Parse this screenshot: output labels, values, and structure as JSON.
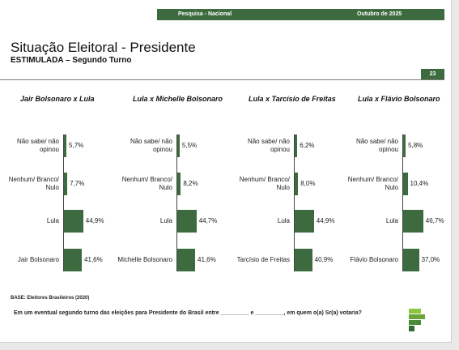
{
  "header": {
    "survey": "Pesquisa - Nacional",
    "date": "Outubro de 2025",
    "page_number": "23",
    "colors": {
      "brand": "#3d6b3f"
    }
  },
  "title": "Situação Eleitoral - Presidente",
  "subtitle": "ESTIMULADA – Segundo Turno",
  "footer": {
    "base": "BASE: Eleitores Brasileiros (2020)",
    "question": "Em um eventual segundo turno das eleições para Presidente do Brasil entre _________ e _________, em quem o(a) Sr(a) votaria?"
  },
  "chart_data": [
    {
      "type": "bar",
      "orientation": "horizontal",
      "title": "Jair Bolsonaro x Lula",
      "categories": [
        "Não sabe/ não opinou",
        "Nenhum/ Branco/ Nulo",
        "Lula",
        "Jair Bolsonaro"
      ],
      "values": [
        5.7,
        7.7,
        44.9,
        41.6
      ],
      "labels": [
        "5,7%",
        "7,7%",
        "44,9%",
        "41,6%"
      ]
    },
    {
      "type": "bar",
      "orientation": "horizontal",
      "title": "Lula x Michelle Bolsonaro",
      "categories": [
        "Não sabe/ não opinou",
        "Nenhum/ Branco/ Nulo",
        "Lula",
        "Michelle Bolsonaro"
      ],
      "values": [
        5.5,
        8.2,
        44.7,
        41.6
      ],
      "labels": [
        "5,5%",
        "8,2%",
        "44,7%",
        "41,6%"
      ]
    },
    {
      "type": "bar",
      "orientation": "horizontal",
      "title": "Lula x Tarcísio de Freitas",
      "categories": [
        "Não sabe/ não opinou",
        "Nenhum/ Branco/ Nulo",
        "Lula",
        "Tarcísio de Freitas"
      ],
      "values": [
        6.2,
        8.0,
        44.9,
        40.9
      ],
      "labels": [
        "6,2%",
        "8,0%",
        "44,9%",
        "40,9%"
      ]
    },
    {
      "type": "bar",
      "orientation": "horizontal",
      "title": "Lula x Flávio Bolsonaro",
      "categories": [
        "Não sabe/ não opinou",
        "Nenhum/ Branco/ Nulo",
        "Lula",
        "Flávio Bolsonaro"
      ],
      "values": [
        5.8,
        10.4,
        46.7,
        37.0
      ],
      "labels": [
        "5,8%",
        "10,4%",
        "46,7%",
        "37,0%"
      ]
    }
  ]
}
